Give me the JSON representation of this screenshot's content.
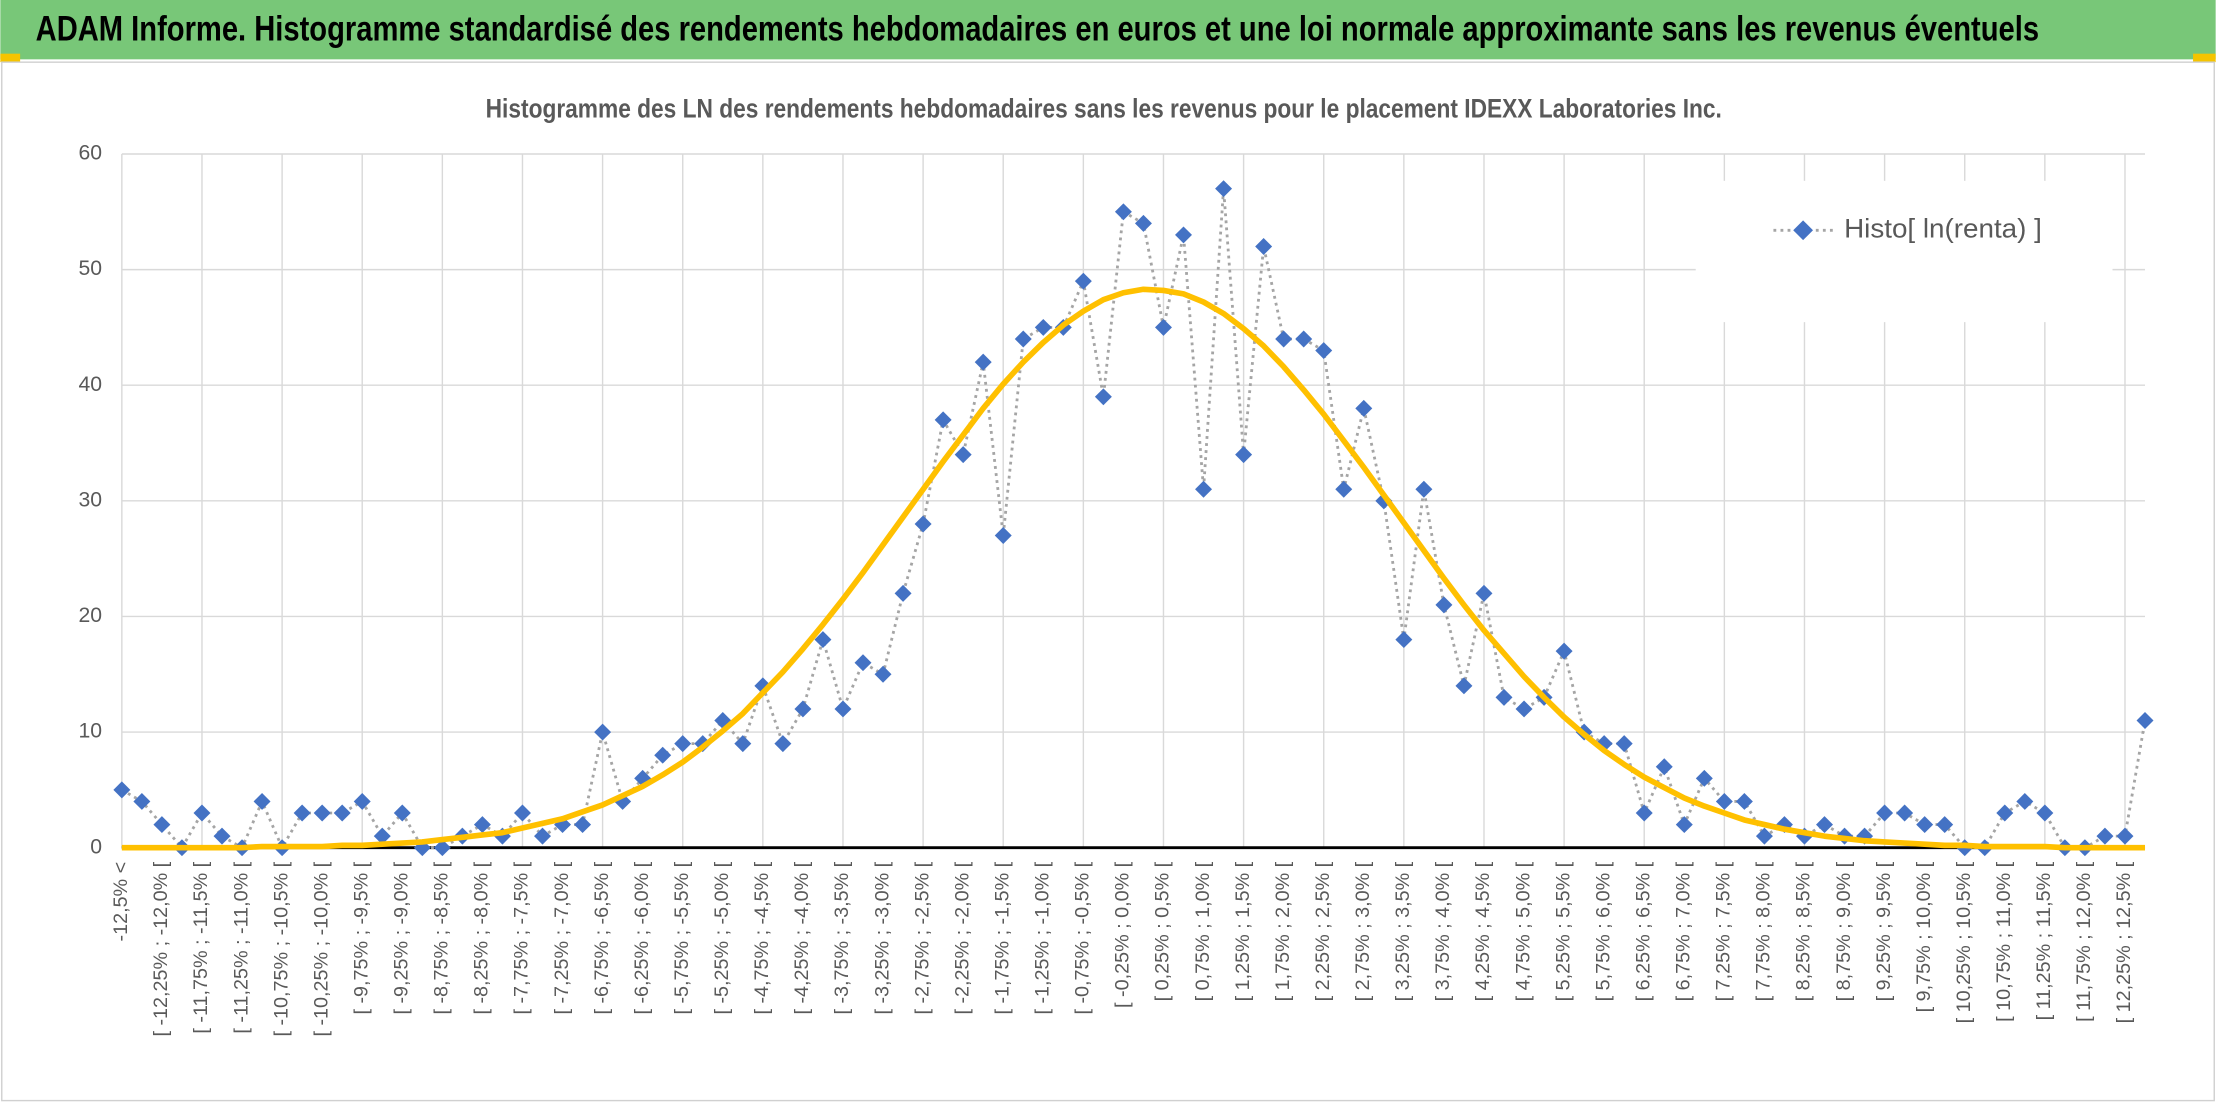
{
  "header": {
    "title": "ADAM Informe. Histogramme standardisé des rendements hebdomadaires en euros et une loi normale approximante sans les revenus éventuels"
  },
  "chart_data": {
    "type": "line",
    "title": "Histogramme des LN des rendements hebdomadaires sans les revenus pour le placement IDEXX Laboratories Inc.",
    "categories": [
      "-12,5% <",
      null,
      "[ -12,25% ; -12,0% [",
      null,
      "[ -11,75% ; -11,5% [",
      null,
      "[ -11,25% ; -11,0% [",
      null,
      "[ -10,75% ; -10,5% [",
      null,
      "[ -10,25% ; -10,0% [",
      null,
      "[ -9,75% ; -9,5% [",
      null,
      "[ -9,25% ; -9,0% [",
      null,
      "[ -8,75% ; -8,5% [",
      null,
      "[ -8,25% ; -8,0% [",
      null,
      "[ -7,75% ; -7,5% [",
      null,
      "[ -7,25% ; -7,0% [",
      null,
      "[ -6,75% ; -6,5% [",
      null,
      "[ -6,25% ; -6,0% [",
      null,
      "[ -5,75% ; -5,5% [",
      null,
      "[ -5,25% ; -5,0% [",
      null,
      "[ -4,75% ; -4,5% [",
      null,
      "[ -4,25% ; -4,0% [",
      null,
      "[ -3,75% ; -3,5% [",
      null,
      "[ -3,25% ; -3,0% [",
      null,
      "[ -2,75% ; -2,5% [",
      null,
      "[ -2,25% ; -2,0% [",
      null,
      "[ -1,75% ; -1,5% [",
      null,
      "[ -1,25% ; -1,0% [",
      null,
      "[ -0,75% ; -0,5% [",
      null,
      "[ -0,25% ; 0,0% [",
      null,
      "[ 0,25% ; 0,5% [",
      null,
      "[ 0,75% ; 1,0% [",
      null,
      "[ 1,25% ; 1,5% [",
      null,
      "[ 1,75% ; 2,0% [",
      null,
      "[ 2,25% ; 2,5% [",
      null,
      "[ 2,75% ; 3,0% [",
      null,
      "[ 3,25% ; 3,5% [",
      null,
      "[ 3,75% ; 4,0% [",
      null,
      "[ 4,25% ; 4,5% [",
      null,
      "[ 4,75% ; 5,0% [",
      null,
      "[ 5,25% ; 5,5% [",
      null,
      "[ 5,75% ; 6,0% [",
      null,
      "[ 6,25% ; 6,5% [",
      null,
      "[ 6,75% ; 7,0% [",
      null,
      "[ 7,25% ; 7,5% [",
      null,
      "[ 7,75% ; 8,0% [",
      null,
      "[ 8,25% ; 8,5% [",
      null,
      "[ 8,75% ; 9,0% [",
      null,
      "[ 9,25% ; 9,5% [",
      null,
      "[ 9,75% ; 10,0% [",
      null,
      "[ 10,25% ; 10,5% [",
      null,
      "[ 10,75% ; 11,0% [",
      null,
      "[ 11,25% ; 11,5% [",
      null,
      "[ 11,75% ; 12,0% [",
      null,
      "[ 12,25% ; 12,5% [",
      null
    ],
    "series": [
      {
        "name": "Histo[ ln(renta) ]",
        "color": "#4472c4",
        "line_color": "#a5a5a5",
        "values": [
          5,
          4,
          2,
          0,
          3,
          1,
          0,
          4,
          0,
          3,
          3,
          3,
          4,
          1,
          3,
          0,
          0,
          1,
          2,
          1,
          3,
          1,
          2,
          2,
          10,
          4,
          6,
          8,
          9,
          9,
          11,
          9,
          14,
          9,
          12,
          18,
          12,
          16,
          15,
          22,
          28,
          37,
          34,
          42,
          27,
          44,
          45,
          45,
          49,
          39,
          55,
          54,
          45,
          53,
          31,
          57,
          34,
          52,
          44,
          44,
          43,
          31,
          38,
          30,
          18,
          31,
          21,
          14,
          22,
          13,
          12,
          13,
          17,
          10,
          9,
          9,
          3,
          7,
          2,
          6,
          4,
          4,
          1,
          2,
          1,
          2,
          1,
          1,
          3,
          3,
          2,
          2,
          0,
          0,
          3,
          4,
          3,
          0,
          0,
          1,
          1,
          11
        ]
      },
      {
        "color": "#ffc000",
        "values": [
          0,
          0,
          0,
          0,
          0,
          0,
          0,
          0.1,
          0.1,
          0.1,
          0.1,
          0.2,
          0.2,
          0.3,
          0.4,
          0.5,
          0.7,
          0.9,
          1.1,
          1.3,
          1.7,
          2.1,
          2.5,
          3.1,
          3.7,
          4.5,
          5.3,
          6.3,
          7.4,
          8.7,
          10.1,
          11.6,
          13.4,
          15.2,
          17.2,
          19.3,
          21.5,
          23.8,
          26.2,
          28.6,
          31.0,
          33.4,
          35.7,
          38.0,
          40.1,
          42.0,
          43.7,
          45.2,
          46.4,
          47.4,
          48.0,
          48.3,
          48.2,
          47.9,
          47.2,
          46.2,
          44.9,
          43.4,
          41.6,
          39.6,
          37.5,
          35.2,
          32.9,
          30.5,
          28.1,
          25.7,
          23.3,
          21.0,
          18.8,
          16.8,
          14.8,
          13.0,
          11.3,
          9.8,
          8.4,
          7.2,
          6.1,
          5.2,
          4.3,
          3.6,
          3.0,
          2.4,
          2.0,
          1.6,
          1.3,
          1.0,
          0.8,
          0.6,
          0.5,
          0.4,
          0.3,
          0.2,
          0.2,
          0.1,
          0.1,
          0.1,
          0.1,
          0,
          0,
          0,
          0,
          0
        ]
      }
    ],
    "ylim": [
      0,
      60
    ],
    "yticks": [
      0,
      10,
      20,
      30,
      40,
      50,
      60
    ],
    "grid": true,
    "legend": "top-right"
  }
}
